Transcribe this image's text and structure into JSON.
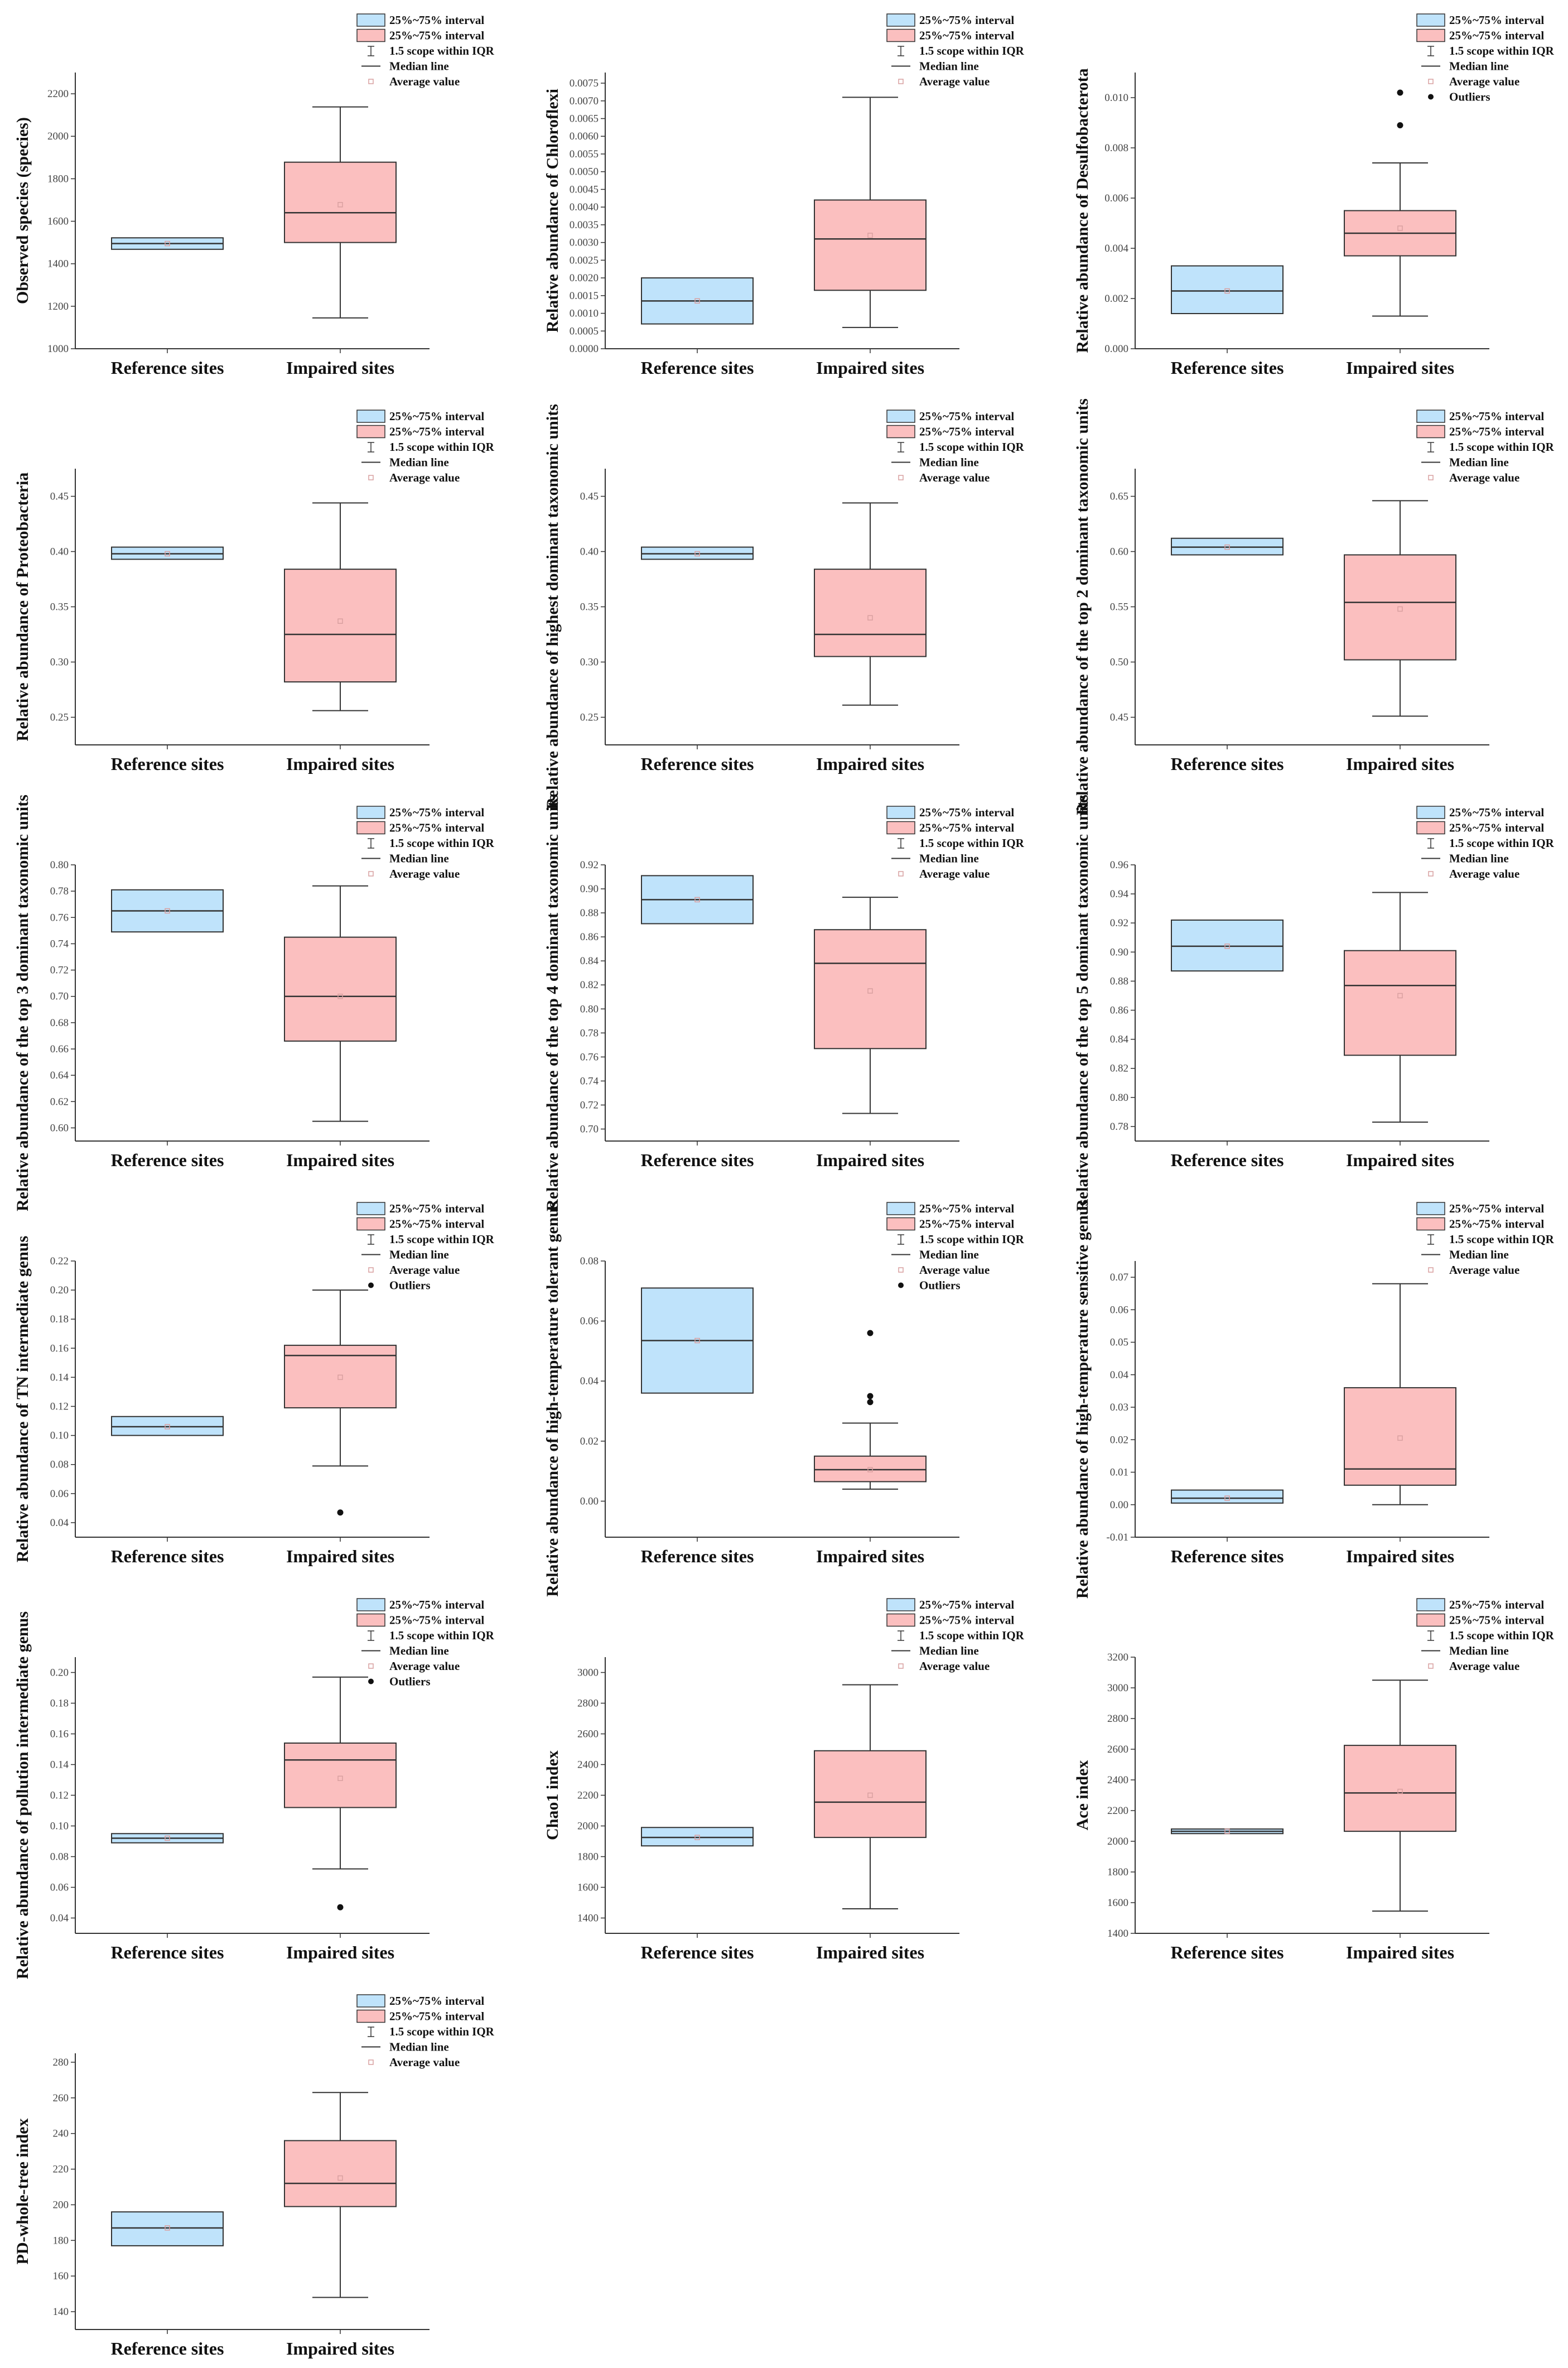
{
  "legend": {
    "box_label": "25%~75% interval",
    "whisker_label": "1.5 scope within IQR",
    "median_label": "Median line",
    "mean_label": "Average value",
    "outlier_label": "Outliers"
  },
  "categories": [
    "Reference sites",
    "Impaired sites"
  ],
  "colors": {
    "reference_fill": "#bfe3fb",
    "impaired_fill": "#fbbfbf",
    "box_stroke": "#333333",
    "mean_marker": "#d9a0a0",
    "outlier": "#111111"
  },
  "chart_data": [
    {
      "type": "box",
      "ylabel": "Observed species (species)",
      "ylim": [
        1000,
        2300
      ],
      "ticks": [
        1000,
        1200,
        1400,
        1600,
        1800,
        2000,
        2200
      ],
      "decimals": 0,
      "legend_outliers": false,
      "series": [
        {
          "name": "Reference sites",
          "q1": 1468,
          "median": 1495,
          "q3": 1522,
          "mean": 1495,
          "whisker_low": null,
          "whisker_high": null,
          "outliers": []
        },
        {
          "name": "Impaired sites",
          "q1": 1500,
          "median": 1640,
          "q3": 1878,
          "mean": 1678,
          "whisker_low": 1145,
          "whisker_high": 2138,
          "outliers": []
        }
      ]
    },
    {
      "type": "box",
      "ylabel": "Relative abundance of Chloroflexi",
      "ylim": [
        0,
        0.0078
      ],
      "ticks": [
        0,
        0.0005,
        0.001,
        0.0015,
        0.002,
        0.0025,
        0.003,
        0.0035,
        0.004,
        0.0045,
        0.005,
        0.0055,
        0.006,
        0.0065,
        0.007,
        0.0075
      ],
      "decimals": 4,
      "legend_outliers": false,
      "series": [
        {
          "name": "Reference sites",
          "q1": 0.0007,
          "median": 0.00135,
          "q3": 0.002,
          "mean": 0.00135,
          "whisker_low": null,
          "whisker_high": null,
          "outliers": []
        },
        {
          "name": "Impaired sites",
          "q1": 0.00165,
          "median": 0.0031,
          "q3": 0.0042,
          "mean": 0.0032,
          "whisker_low": 0.0006,
          "whisker_high": 0.0071,
          "outliers": []
        }
      ]
    },
    {
      "type": "box",
      "ylabel": "Relative abundance of Desulfobacterota",
      "ylim": [
        0,
        0.011
      ],
      "ticks": [
        0,
        0.002,
        0.004,
        0.006,
        0.008,
        0.01
      ],
      "decimals": 3,
      "legend_outliers": true,
      "series": [
        {
          "name": "Reference sites",
          "q1": 0.0014,
          "median": 0.0023,
          "q3": 0.0033,
          "mean": 0.0023,
          "whisker_low": null,
          "whisker_high": null,
          "outliers": []
        },
        {
          "name": "Impaired sites",
          "q1": 0.0037,
          "median": 0.0046,
          "q3": 0.0055,
          "mean": 0.0048,
          "whisker_low": 0.0013,
          "whisker_high": 0.0074,
          "outliers": [
            0.0089,
            0.0102
          ]
        }
      ]
    },
    {
      "type": "box",
      "ylabel": "Relative abundance of Proteobacteria",
      "ylim": [
        0.225,
        0.475
      ],
      "ticks": [
        0.25,
        0.3,
        0.35,
        0.4,
        0.45
      ],
      "decimals": 2,
      "legend_outliers": false,
      "series": [
        {
          "name": "Reference sites",
          "q1": 0.393,
          "median": 0.398,
          "q3": 0.404,
          "mean": 0.398,
          "whisker_low": null,
          "whisker_high": null,
          "outliers": []
        },
        {
          "name": "Impaired sites",
          "q1": 0.282,
          "median": 0.325,
          "q3": 0.384,
          "mean": 0.337,
          "whisker_low": 0.256,
          "whisker_high": 0.444,
          "outliers": []
        }
      ]
    },
    {
      "type": "box",
      "ylabel": "Relative abundance of highest dominant taxonomic units",
      "ylim": [
        0.225,
        0.475
      ],
      "ticks": [
        0.25,
        0.3,
        0.35,
        0.4,
        0.45
      ],
      "decimals": 2,
      "legend_outliers": false,
      "series": [
        {
          "name": "Reference sites",
          "q1": 0.393,
          "median": 0.398,
          "q3": 0.404,
          "mean": 0.398,
          "whisker_low": null,
          "whisker_high": null,
          "outliers": []
        },
        {
          "name": "Impaired sites",
          "q1": 0.305,
          "median": 0.325,
          "q3": 0.384,
          "mean": 0.34,
          "whisker_low": 0.261,
          "whisker_high": 0.444,
          "outliers": []
        }
      ]
    },
    {
      "type": "box",
      "ylabel": "Relative abundance of the top 2 dominant taxonomic units",
      "ylim": [
        0.425,
        0.675
      ],
      "ticks": [
        0.45,
        0.5,
        0.55,
        0.6,
        0.65
      ],
      "decimals": 2,
      "legend_outliers": false,
      "series": [
        {
          "name": "Reference sites",
          "q1": 0.597,
          "median": 0.604,
          "q3": 0.612,
          "mean": 0.604,
          "whisker_low": null,
          "whisker_high": null,
          "outliers": []
        },
        {
          "name": "Impaired sites",
          "q1": 0.502,
          "median": 0.554,
          "q3": 0.597,
          "mean": 0.548,
          "whisker_low": 0.451,
          "whisker_high": 0.646,
          "outliers": []
        }
      ]
    },
    {
      "type": "box",
      "ylabel": "Relative abundance of the top 3 dominant taxonomic units",
      "ylim": [
        0.59,
        0.8
      ],
      "ticks": [
        0.6,
        0.62,
        0.64,
        0.66,
        0.68,
        0.7,
        0.72,
        0.74,
        0.76,
        0.78,
        0.8
      ],
      "decimals": 2,
      "legend_outliers": false,
      "series": [
        {
          "name": "Reference sites",
          "q1": 0.749,
          "median": 0.765,
          "q3": 0.781,
          "mean": 0.765,
          "whisker_low": null,
          "whisker_high": null,
          "outliers": []
        },
        {
          "name": "Impaired sites",
          "q1": 0.666,
          "median": 0.7,
          "q3": 0.745,
          "mean": 0.7,
          "whisker_low": 0.605,
          "whisker_high": 0.784,
          "outliers": []
        }
      ]
    },
    {
      "type": "box",
      "ylabel": "Relative abundance of the top 4 dominant taxonomic units",
      "ylim": [
        0.69,
        0.92
      ],
      "ticks": [
        0.7,
        0.72,
        0.74,
        0.76,
        0.78,
        0.8,
        0.82,
        0.84,
        0.86,
        0.88,
        0.9,
        0.92
      ],
      "decimals": 2,
      "legend_outliers": false,
      "series": [
        {
          "name": "Reference sites",
          "q1": 0.871,
          "median": 0.891,
          "q3": 0.911,
          "mean": 0.891,
          "whisker_low": null,
          "whisker_high": null,
          "outliers": []
        },
        {
          "name": "Impaired sites",
          "q1": 0.767,
          "median": 0.838,
          "q3": 0.866,
          "mean": 0.815,
          "whisker_low": 0.713,
          "whisker_high": 0.893,
          "outliers": []
        }
      ]
    },
    {
      "type": "box",
      "ylabel": "Relative abundance of the top 5 dominant taxonomic units",
      "ylim": [
        0.77,
        0.96
      ],
      "ticks": [
        0.78,
        0.8,
        0.82,
        0.84,
        0.86,
        0.88,
        0.9,
        0.92,
        0.94,
        0.96
      ],
      "decimals": 2,
      "legend_outliers": false,
      "series": [
        {
          "name": "Reference sites",
          "q1": 0.887,
          "median": 0.904,
          "q3": 0.922,
          "mean": 0.904,
          "whisker_low": null,
          "whisker_high": null,
          "outliers": []
        },
        {
          "name": "Impaired sites",
          "q1": 0.829,
          "median": 0.877,
          "q3": 0.901,
          "mean": 0.87,
          "whisker_low": 0.783,
          "whisker_high": 0.941,
          "outliers": []
        }
      ]
    },
    {
      "type": "box",
      "ylabel": "Relative abundance of TN intermediate genus",
      "ylim": [
        0.03,
        0.22
      ],
      "ticks": [
        0.04,
        0.06,
        0.08,
        0.1,
        0.12,
        0.14,
        0.16,
        0.18,
        0.2,
        0.22
      ],
      "decimals": 2,
      "legend_outliers": true,
      "series": [
        {
          "name": "Reference sites",
          "q1": 0.1,
          "median": 0.106,
          "q3": 0.113,
          "mean": 0.106,
          "whisker_low": null,
          "whisker_high": null,
          "outliers": []
        },
        {
          "name": "Impaired sites",
          "q1": 0.119,
          "median": 0.155,
          "q3": 0.162,
          "mean": 0.14,
          "whisker_low": 0.079,
          "whisker_high": 0.2,
          "outliers": [
            0.047
          ]
        }
      ]
    },
    {
      "type": "box",
      "ylabel": "Relative abundance of high-temperature tolerant genus",
      "ylim": [
        -0.012,
        0.08
      ],
      "ticks": [
        0,
        0.02,
        0.04,
        0.06,
        0.08
      ],
      "decimals": 2,
      "legend_outliers": true,
      "series": [
        {
          "name": "Reference sites",
          "q1": 0.036,
          "median": 0.0535,
          "q3": 0.071,
          "mean": 0.0535,
          "whisker_low": null,
          "whisker_high": null,
          "outliers": []
        },
        {
          "name": "Impaired sites",
          "q1": 0.0065,
          "median": 0.0105,
          "q3": 0.015,
          "mean": 0.0105,
          "whisker_low": 0.004,
          "whisker_high": 0.026,
          "outliers": [
            0.033,
            0.035,
            0.056
          ]
        }
      ]
    },
    {
      "type": "box",
      "ylabel": "Relative abundance of high-temperature sensitive genus",
      "ylim": [
        -0.01,
        0.075
      ],
      "ticks": [
        -0.01,
        0,
        0.01,
        0.02,
        0.03,
        0.04,
        0.05,
        0.06,
        0.07
      ],
      "decimals": 2,
      "legend_outliers": false,
      "series": [
        {
          "name": "Reference sites",
          "q1": 0.0005,
          "median": 0.002,
          "q3": 0.0045,
          "mean": 0.002,
          "whisker_low": null,
          "whisker_high": null,
          "outliers": []
        },
        {
          "name": "Impaired sites",
          "q1": 0.006,
          "median": 0.011,
          "q3": 0.036,
          "mean": 0.0205,
          "whisker_low": 0,
          "whisker_high": 0.068,
          "outliers": []
        }
      ]
    },
    {
      "type": "box",
      "ylabel": "Relative abundance of pollution intermediate genus",
      "ylim": [
        0.03,
        0.21
      ],
      "ticks": [
        0.04,
        0.06,
        0.08,
        0.1,
        0.12,
        0.14,
        0.16,
        0.18,
        0.2
      ],
      "decimals": 2,
      "legend_outliers": true,
      "series": [
        {
          "name": "Reference sites",
          "q1": 0.089,
          "median": 0.092,
          "q3": 0.095,
          "mean": 0.092,
          "whisker_low": null,
          "whisker_high": null,
          "outliers": []
        },
        {
          "name": "Impaired sites",
          "q1": 0.112,
          "median": 0.143,
          "q3": 0.154,
          "mean": 0.131,
          "whisker_low": 0.072,
          "whisker_high": 0.197,
          "outliers": [
            0.047
          ]
        }
      ]
    },
    {
      "type": "box",
      "ylabel": "Chao1 index",
      "ylim": [
        1300,
        3100
      ],
      "ticks": [
        1400,
        1600,
        1800,
        2000,
        2200,
        2400,
        2600,
        2800,
        3000
      ],
      "decimals": 0,
      "legend_outliers": false,
      "series": [
        {
          "name": "Reference sites",
          "q1": 1870,
          "median": 1925,
          "q3": 1990,
          "mean": 1925,
          "whisker_low": null,
          "whisker_high": null,
          "outliers": []
        },
        {
          "name": "Impaired sites",
          "q1": 1925,
          "median": 2155,
          "q3": 2490,
          "mean": 2200,
          "whisker_low": 1460,
          "whisker_high": 2920,
          "outliers": []
        }
      ]
    },
    {
      "type": "box",
      "ylabel": "Ace index",
      "ylim": [
        1400,
        3200
      ],
      "ticks": [
        1400,
        1600,
        1800,
        2000,
        2200,
        2400,
        2600,
        2800,
        3000,
        3200
      ],
      "decimals": 0,
      "legend_outliers": false,
      "series": [
        {
          "name": "Reference sites",
          "q1": 2050,
          "median": 2065,
          "q3": 2080,
          "mean": 2065,
          "whisker_low": null,
          "whisker_high": null,
          "outliers": []
        },
        {
          "name": "Impaired sites",
          "q1": 2065,
          "median": 2315,
          "q3": 2625,
          "mean": 2325,
          "whisker_low": 1545,
          "whisker_high": 3050,
          "outliers": []
        }
      ]
    },
    {
      "type": "box",
      "ylabel": "PD-whole-tree index",
      "ylim": [
        130,
        285
      ],
      "ticks": [
        140,
        160,
        180,
        200,
        220,
        240,
        260,
        280
      ],
      "decimals": 0,
      "legend_outliers": false,
      "series": [
        {
          "name": "Reference sites",
          "q1": 177,
          "median": 187,
          "q3": 196,
          "mean": 187,
          "whisker_low": null,
          "whisker_high": null,
          "outliers": []
        },
        {
          "name": "Impaired sites",
          "q1": 199,
          "median": 212,
          "q3": 236,
          "mean": 215,
          "whisker_low": 148,
          "whisker_high": 263,
          "outliers": []
        }
      ]
    }
  ]
}
